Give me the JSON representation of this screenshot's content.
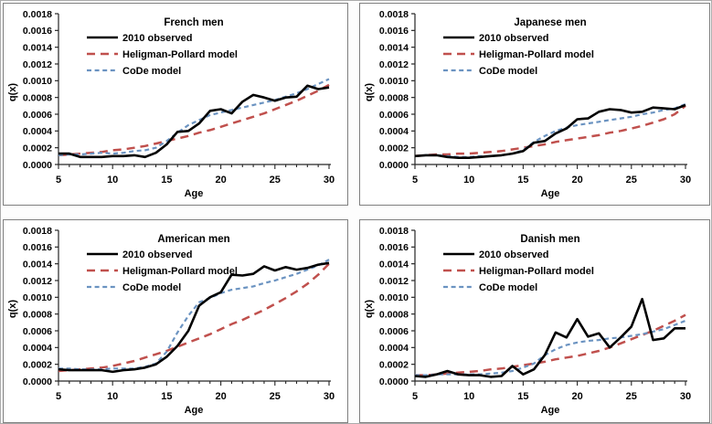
{
  "figure": {
    "x_axis_label": "Age",
    "y_axis_label": "q(x)",
    "x_tick_labels": [
      "5",
      "10",
      "15",
      "20",
      "25",
      "30"
    ],
    "y_tick_labels": [
      "0.0000",
      "0.0002",
      "0.0004",
      "0.0006",
      "0.0008",
      "0.0010",
      "0.0012",
      "0.0014",
      "0.0016",
      "0.0018"
    ],
    "legend": [
      "2010 observed",
      "Heligman-Pollard model",
      "CoDe model"
    ],
    "legend_position": "upper-left-inside",
    "grid": false,
    "colors": {
      "observed": "#000000",
      "heligman_pollard": "#C0504D",
      "code_model": "#6B93C1",
      "axis": "#262626",
      "panel_border": "#7f7f7f",
      "outer_border": "#ababab",
      "background": "#ffffff"
    }
  },
  "chart_data": [
    {
      "type": "line",
      "title": "French men",
      "xlabel": "Age",
      "ylabel": "q(x)",
      "xlim": [
        5,
        30
      ],
      "ylim": [
        0,
        0.0018
      ],
      "x": [
        5,
        6,
        7,
        8,
        9,
        10,
        11,
        12,
        13,
        14,
        15,
        16,
        17,
        18,
        19,
        20,
        21,
        22,
        23,
        24,
        25,
        26,
        27,
        28,
        29,
        30
      ],
      "series": [
        {
          "name": "2010 observed",
          "color": "#000000",
          "line_style": "solid",
          "values": [
            0.00013,
            0.00013,
            9e-05,
            9e-05,
            9e-05,
            0.0001,
            0.0001,
            0.00011,
            9e-05,
            0.00014,
            0.00024,
            0.00039,
            0.0004,
            0.00049,
            0.00064,
            0.00066,
            0.00061,
            0.00075,
            0.00083,
            0.0008,
            0.00076,
            0.0008,
            0.00081,
            0.00094,
            0.0009,
            0.00092
          ]
        },
        {
          "name": "Heligman-Pollard model",
          "color": "#C0504D",
          "line_style": "long-dash",
          "values": [
            0.00011,
            0.00012,
            0.00013,
            0.00014,
            0.00015,
            0.00017,
            0.00018,
            0.0002,
            0.00022,
            0.00025,
            0.00028,
            0.00031,
            0.00034,
            0.00038,
            0.00041,
            0.00045,
            0.00049,
            0.00053,
            0.00057,
            0.00061,
            0.00066,
            0.00071,
            0.00076,
            0.00082,
            0.00088,
            0.00095
          ]
        },
        {
          "name": "CoDe model",
          "color": "#6B93C1",
          "line_style": "short-dash",
          "values": [
            0.00011,
            0.00012,
            0.00012,
            0.00013,
            0.00014,
            0.00013,
            0.00014,
            0.00016,
            0.00017,
            0.0002,
            0.00028,
            0.00038,
            0.00047,
            0.00053,
            0.00059,
            0.00062,
            0.00065,
            0.00068,
            0.00071,
            0.00074,
            0.00077,
            0.00081,
            0.00085,
            0.0009,
            0.00096,
            0.00102
          ]
        }
      ]
    },
    {
      "type": "line",
      "title": "Japanese men",
      "xlabel": "Age",
      "ylabel": "q(x)",
      "xlim": [
        5,
        30
      ],
      "ylim": [
        0,
        0.0018
      ],
      "x": [
        5,
        6,
        7,
        8,
        9,
        10,
        11,
        12,
        13,
        14,
        15,
        16,
        17,
        18,
        19,
        20,
        21,
        22,
        23,
        24,
        25,
        26,
        27,
        28,
        29,
        30
      ],
      "series": [
        {
          "name": "2010 observed",
          "color": "#000000",
          "line_style": "solid",
          "values": [
            0.0001,
            0.00011,
            0.00011,
            9e-05,
            8e-05,
            8e-05,
            9e-05,
            0.0001,
            0.00011,
            0.00013,
            0.00016,
            0.00026,
            0.00028,
            0.00037,
            0.00043,
            0.00054,
            0.00055,
            0.00063,
            0.00066,
            0.00065,
            0.00062,
            0.00063,
            0.00068,
            0.00067,
            0.00066,
            0.00071
          ]
        },
        {
          "name": "Heligman-Pollard model",
          "color": "#C0504D",
          "line_style": "long-dash",
          "values": [
            0.0001,
            0.00011,
            0.00012,
            0.00012,
            0.00013,
            0.00013,
            0.00014,
            0.00015,
            0.00016,
            0.00018,
            0.0002,
            0.00022,
            0.00024,
            0.00027,
            0.00029,
            0.00031,
            0.00033,
            0.00035,
            0.00038,
            0.0004,
            0.00043,
            0.00046,
            0.0005,
            0.00054,
            0.0006,
            0.0007
          ]
        },
        {
          "name": "CoDe model",
          "color": "#6B93C1",
          "line_style": "short-dash",
          "values": [
            0.0001,
            0.00011,
            0.00011,
            0.0001,
            9e-05,
            9e-05,
            0.0001,
            0.0001,
            0.00011,
            0.00013,
            0.00017,
            0.00027,
            0.00034,
            0.0004,
            0.00044,
            0.00047,
            0.00049,
            0.00051,
            0.00053,
            0.00055,
            0.00057,
            0.0006,
            0.00062,
            0.00065,
            0.00067,
            0.00072
          ]
        }
      ]
    },
    {
      "type": "line",
      "title": "American men",
      "xlabel": "Age",
      "ylabel": "q(x)",
      "xlim": [
        5,
        30
      ],
      "ylim": [
        0,
        0.0018
      ],
      "x": [
        5,
        6,
        7,
        8,
        9,
        10,
        11,
        12,
        13,
        14,
        15,
        16,
        17,
        18,
        19,
        20,
        21,
        22,
        23,
        24,
        25,
        26,
        27,
        28,
        29,
        30
      ],
      "series": [
        {
          "name": "2010 observed",
          "color": "#000000",
          "line_style": "solid",
          "values": [
            0.00014,
            0.00013,
            0.00013,
            0.00013,
            0.00013,
            0.00011,
            0.00013,
            0.00014,
            0.00016,
            0.0002,
            0.00029,
            0.00042,
            0.0006,
            0.0009,
            0.001,
            0.00106,
            0.00127,
            0.00126,
            0.00128,
            0.00137,
            0.00132,
            0.00136,
            0.00133,
            0.00135,
            0.00139,
            0.00141
          ]
        },
        {
          "name": "Heligman-Pollard model",
          "color": "#C0504D",
          "line_style": "long-dash",
          "values": [
            0.00012,
            0.00013,
            0.00014,
            0.00015,
            0.00016,
            0.00018,
            0.00021,
            0.00024,
            0.00028,
            0.00032,
            0.00036,
            0.00041,
            0.00046,
            0.00051,
            0.00056,
            0.00062,
            0.00068,
            0.00073,
            0.00079,
            0.00085,
            0.00092,
            0.00099,
            0.00107,
            0.00116,
            0.00127,
            0.0014
          ]
        },
        {
          "name": "CoDe model",
          "color": "#6B93C1",
          "line_style": "short-dash",
          "values": [
            0.00015,
            0.00015,
            0.00014,
            0.00014,
            0.00014,
            0.00015,
            0.00015,
            0.00015,
            0.00017,
            0.00021,
            0.00035,
            0.00058,
            0.00078,
            0.00094,
            0.00099,
            0.00105,
            0.00109,
            0.00111,
            0.00113,
            0.00117,
            0.0012,
            0.00124,
            0.00128,
            0.00133,
            0.00138,
            0.00145
          ]
        }
      ]
    },
    {
      "type": "line",
      "title": "Danish men",
      "xlabel": "Age",
      "ylabel": "q(x)",
      "xlim": [
        5,
        30
      ],
      "ylim": [
        0,
        0.0018
      ],
      "x": [
        5,
        6,
        7,
        8,
        9,
        10,
        11,
        12,
        13,
        14,
        15,
        16,
        17,
        18,
        19,
        20,
        21,
        22,
        23,
        24,
        25,
        26,
        27,
        28,
        29,
        30
      ],
      "series": [
        {
          "name": "2010 observed",
          "color": "#000000",
          "line_style": "solid",
          "values": [
            6e-05,
            5e-05,
            8e-05,
            0.00012,
            8e-05,
            7e-05,
            7e-05,
            5e-05,
            6e-05,
            0.00018,
            8e-05,
            0.00014,
            0.00031,
            0.00058,
            0.00052,
            0.00074,
            0.00053,
            0.00057,
            0.0004,
            0.00052,
            0.00065,
            0.00098,
            0.00049,
            0.00051,
            0.00063,
            0.00063
          ]
        },
        {
          "name": "Heligman-Pollard model",
          "color": "#C0504D",
          "line_style": "long-dash",
          "values": [
            7e-05,
            7e-05,
            8e-05,
            9e-05,
            0.0001,
            0.00011,
            0.00012,
            0.00014,
            0.00015,
            0.00017,
            0.00019,
            0.00021,
            0.00023,
            0.00026,
            0.00028,
            0.0003,
            0.00033,
            0.00036,
            0.0004,
            0.00045,
            0.0005,
            0.00055,
            0.0006,
            0.00066,
            0.00072,
            0.00079
          ]
        },
        {
          "name": "CoDe model",
          "color": "#6B93C1",
          "line_style": "short-dash",
          "values": [
            7e-05,
            7e-05,
            8e-05,
            8e-05,
            8e-05,
            8e-05,
            8e-05,
            9e-05,
            0.0001,
            0.00012,
            0.00016,
            0.00021,
            0.00031,
            0.00038,
            0.00043,
            0.00046,
            0.00048,
            0.00049,
            0.00051,
            0.00052,
            0.00054,
            0.00056,
            0.00059,
            0.00062,
            0.00067,
            0.00072
          ]
        }
      ]
    }
  ]
}
